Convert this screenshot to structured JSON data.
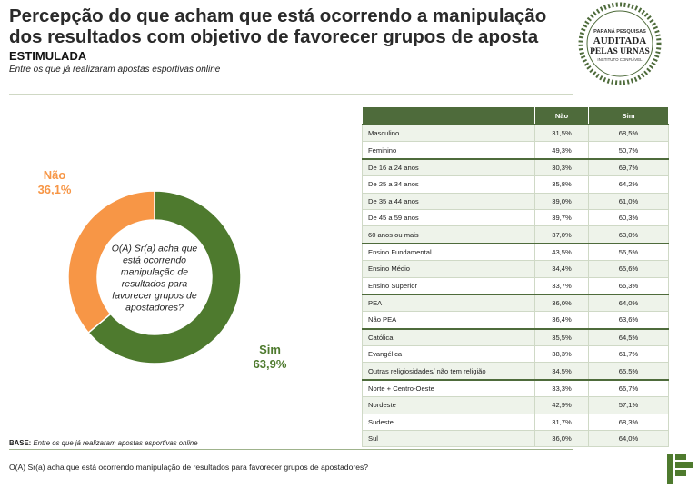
{
  "header": {
    "title": "Percepção do que acham que está ocorrendo a manipulação dos resultados com objetivo de favorecer grupos de aposta",
    "subtitle": "ESTIMULADA",
    "note": "Entre os que já realizaram apostas esportivas online"
  },
  "seal": {
    "line1": "PARANÁ PESQUISAS",
    "line2": "AUDITADA",
    "line3": "PELAS URNAS",
    "line4": "INSTITUTO CONFIÁVEL"
  },
  "chart_data": {
    "type": "pie",
    "variant": "donut",
    "center_text": "O(A) Sr(a) acha que está ocorrendo manipulação de resultados para favorecer grupos de apostadores?",
    "slices": [
      {
        "label": "Não",
        "value": 36.1,
        "display": "36,1%",
        "color": "#f79646"
      },
      {
        "label": "Sim",
        "value": 63.9,
        "display": "63,9%",
        "color": "#4e7a2e"
      }
    ]
  },
  "table": {
    "columns": [
      "",
      "Não",
      "Sim"
    ],
    "rows": [
      {
        "label": "Masculino",
        "nao": "31,5%",
        "sim": "68,5%",
        "group_start": true
      },
      {
        "label": "Feminino",
        "nao": "49,3%",
        "sim": "50,7%"
      },
      {
        "label": "De 16 a 24 anos",
        "nao": "30,3%",
        "sim": "69,7%",
        "group_start": true
      },
      {
        "label": "De 25 a 34 anos",
        "nao": "35,8%",
        "sim": "64,2%"
      },
      {
        "label": "De 35 a 44 anos",
        "nao": "39,0%",
        "sim": "61,0%"
      },
      {
        "label": "De 45 a 59 anos",
        "nao": "39,7%",
        "sim": "60,3%"
      },
      {
        "label": "60 anos ou mais",
        "nao": "37,0%",
        "sim": "63,0%"
      },
      {
        "label": "Ensino Fundamental",
        "nao": "43,5%",
        "sim": "56,5%",
        "group_start": true
      },
      {
        "label": "Ensino Médio",
        "nao": "34,4%",
        "sim": "65,6%"
      },
      {
        "label": "Ensino Superior",
        "nao": "33,7%",
        "sim": "66,3%"
      },
      {
        "label": "PEA",
        "nao": "36,0%",
        "sim": "64,0%",
        "group_start": true
      },
      {
        "label": "Não PEA",
        "nao": "36,4%",
        "sim": "63,6%"
      },
      {
        "label": "Católica",
        "nao": "35,5%",
        "sim": "64,5%",
        "group_start": true
      },
      {
        "label": "Evangélica",
        "nao": "38,3%",
        "sim": "61,7%"
      },
      {
        "label": "Outras religiosidades/ não tem religião",
        "nao": "34,5%",
        "sim": "65,5%"
      },
      {
        "label": "Norte + Centro-Oeste",
        "nao": "33,3%",
        "sim": "66,7%",
        "group_start": true
      },
      {
        "label": "Nordeste",
        "nao": "42,9%",
        "sim": "57,1%"
      },
      {
        "label": "Sudeste",
        "nao": "31,7%",
        "sim": "68,3%"
      },
      {
        "label": "Sul",
        "nao": "36,0%",
        "sim": "64,0%"
      }
    ]
  },
  "base": {
    "label": "BASE:",
    "text": "Entre os que já realizaram apostas esportivas online"
  },
  "footer": {
    "question": "O(A) Sr(a) acha que está ocorrendo manipulação de resultados para favorecer grupos de apostadores?"
  },
  "colors": {
    "header_green": "#4e6b3b",
    "row_tint": "#eef3ea",
    "nao": "#f79646",
    "sim": "#4e7a2e"
  }
}
